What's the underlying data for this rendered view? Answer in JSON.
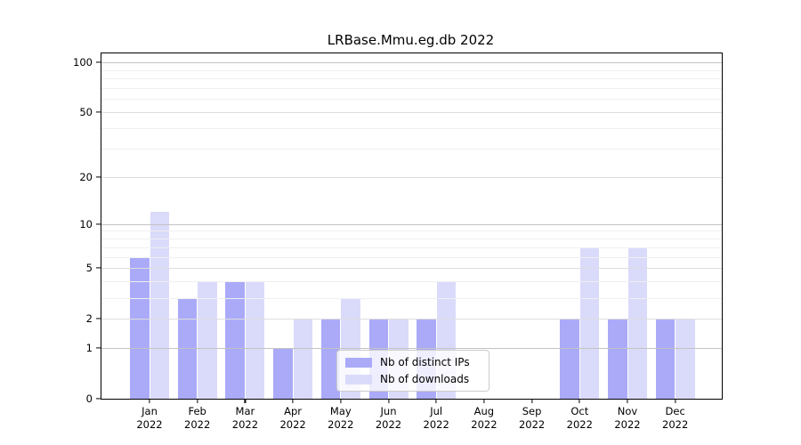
{
  "title": "LRBase.Mmu.eg.db 2022",
  "chart_data": {
    "type": "bar",
    "title": "LRBase.Mmu.eg.db 2022",
    "xlabel": "",
    "ylabel": "",
    "categories": [
      "Jan 2022",
      "Feb 2022",
      "Mar 2022",
      "Apr 2022",
      "May 2022",
      "Jun 2022",
      "Jul 2022",
      "Aug 2022",
      "Sep 2022",
      "Oct 2022",
      "Nov 2022",
      "Dec 2022"
    ],
    "x_tick_month": [
      "Jan",
      "Feb",
      "Mar",
      "Apr",
      "May",
      "Jun",
      "Jul",
      "Aug",
      "Sep",
      "Oct",
      "Nov",
      "Dec"
    ],
    "x_tick_year": "2022",
    "series": [
      {
        "name": "Nb of distinct IPs",
        "color": "#aaaaf9",
        "values": [
          6,
          3,
          4,
          1,
          2,
          2,
          2,
          0,
          0,
          2,
          2,
          2
        ]
      },
      {
        "name": "Nb of downloads",
        "color": "#dadafb",
        "values": [
          12,
          4,
          4,
          2,
          3,
          2,
          4,
          0,
          0,
          7,
          7,
          2
        ]
      }
    ],
    "y_scale": "log1p",
    "ylim": [
      0,
      113
    ],
    "y_ticks": [
      0,
      1,
      2,
      5,
      10,
      20,
      50,
      100
    ],
    "y_tick_labels": [
      "0",
      "1",
      "2",
      "5",
      "10",
      "20",
      "50",
      "100"
    ],
    "y_minor_ticks": [
      3,
      4,
      6,
      7,
      8,
      9,
      30,
      40,
      60,
      70,
      80,
      90
    ],
    "grid": true,
    "legend_position": "lower center"
  },
  "legend": {
    "items": [
      {
        "label": "Nb of distinct IPs",
        "color": "#aaaaf9"
      },
      {
        "label": "Nb of downloads",
        "color": "#dadafb"
      }
    ]
  },
  "colors": {
    "distinct_ips": "#aaaaf9",
    "downloads": "#dadafb",
    "grid_major_decade": "#c3c3c3",
    "grid_major": "#dedede",
    "grid_minor": "#efefef",
    "spine": "#000000"
  }
}
